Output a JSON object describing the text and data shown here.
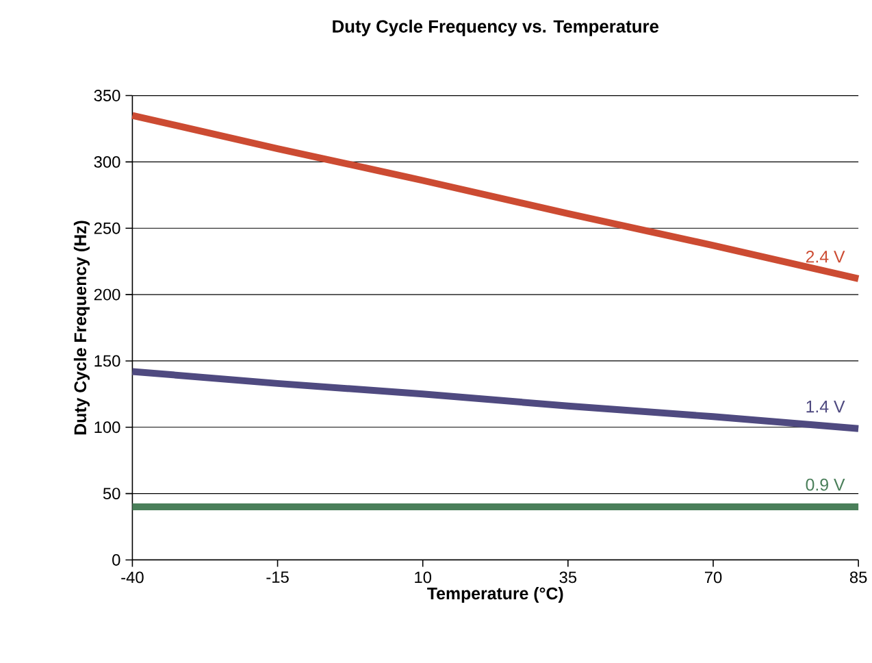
{
  "chart_data": {
    "type": "line",
    "title": "Duty Cycle Frequency vs. Temperature",
    "xlabel": "Temperature (°C)",
    "ylabel": "Duty Cycle Frequency (Hz)",
    "categories": [
      "-40",
      "-15",
      "10",
      "35",
      "70",
      "85"
    ],
    "series": [
      {
        "name": "2.4 V",
        "color": "#cc4b32",
        "values": [
          335,
          310,
          286,
          261,
          237,
          212
        ]
      },
      {
        "name": "1.4 V",
        "color": "#4f4a80",
        "values": [
          142,
          133,
          125,
          116,
          108,
          99
        ]
      },
      {
        "name": "0.9 V",
        "color": "#4a7f5a",
        "values": [
          40,
          40,
          40,
          40,
          40,
          40
        ]
      }
    ],
    "ylim": [
      0,
      350
    ],
    "yticks": [
      0,
      50,
      100,
      150,
      200,
      250,
      300,
      350
    ],
    "grid": "y",
    "marker": "none",
    "line_style": "solid"
  }
}
